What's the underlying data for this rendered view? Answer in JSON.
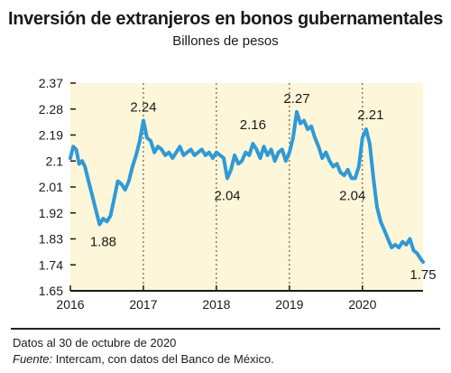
{
  "header": {
    "title": "Inversión de extranjeros en bonos gubernamentales",
    "subtitle": "Billones de pesos"
  },
  "footer": {
    "note": "Datos al 30 de octubre de 2020",
    "source_label": "Fuente:",
    "source_text": "Intercam, con datos del Banco de México."
  },
  "colors": {
    "plot_background": "#fdf6d8",
    "line": "#2e9ad8",
    "grid": "#444444"
  },
  "chart_data": {
    "type": "line",
    "title": "Inversión de extranjeros en bonos gubernamentales",
    "ylabel": "Billones de pesos",
    "xlabel": "",
    "ylim": [
      1.65,
      2.37
    ],
    "xlim": [
      2016.0,
      2020.83
    ],
    "y_ticks": [
      2.37,
      2.28,
      2.19,
      2.1,
      2.01,
      1.92,
      1.83,
      1.74,
      1.65
    ],
    "y_tick_labels": [
      "2.37",
      "2.28",
      "2.19",
      "2.1",
      "2.01",
      "1.92",
      "1.83",
      "1.74",
      "1.65"
    ],
    "x_ticks": [
      2016,
      2017,
      2018,
      2019,
      2020
    ],
    "x_tick_labels": [
      "2016",
      "2017",
      "2018",
      "2019",
      "2020"
    ],
    "grid": "vertical dashed",
    "series": [
      {
        "x": [
          2016.0,
          2016.04,
          2016.08,
          2016.12,
          2016.16,
          2016.2,
          2016.25,
          2016.3,
          2016.35,
          2016.4,
          2016.45,
          2016.5,
          2016.55,
          2016.6,
          2016.65,
          2016.7,
          2016.75,
          2016.8,
          2016.85,
          2016.9,
          2016.95,
          2017.0,
          2017.05,
          2017.1,
          2017.15,
          2017.2,
          2017.25,
          2017.3,
          2017.35,
          2017.4,
          2017.45,
          2017.5,
          2017.55,
          2017.6,
          2017.65,
          2017.7,
          2017.75,
          2017.8,
          2017.85,
          2017.9,
          2017.95,
          2018.0,
          2018.05,
          2018.1,
          2018.15,
          2018.2,
          2018.25,
          2018.3,
          2018.35,
          2018.4,
          2018.45,
          2018.5,
          2018.55,
          2018.6,
          2018.65,
          2018.7,
          2018.75,
          2018.8,
          2018.85,
          2018.9,
          2018.95,
          2019.0,
          2019.05,
          2019.1,
          2019.15,
          2019.2,
          2019.25,
          2019.3,
          2019.35,
          2019.4,
          2019.45,
          2019.5,
          2019.55,
          2019.6,
          2019.65,
          2019.7,
          2019.75,
          2019.8,
          2019.85,
          2019.9,
          2019.95,
          2020.0,
          2020.05,
          2020.1,
          2020.15,
          2020.2,
          2020.25,
          2020.3,
          2020.35,
          2020.4,
          2020.45,
          2020.5,
          2020.55,
          2020.6,
          2020.65,
          2020.7,
          2020.75,
          2020.8,
          2020.83
        ],
        "y": [
          2.11,
          2.15,
          2.14,
          2.09,
          2.1,
          2.08,
          2.03,
          1.98,
          1.93,
          1.88,
          1.9,
          1.89,
          1.91,
          1.97,
          2.03,
          2.02,
          2.0,
          2.03,
          2.08,
          2.12,
          2.17,
          2.24,
          2.18,
          2.17,
          2.13,
          2.15,
          2.14,
          2.12,
          2.13,
          2.11,
          2.13,
          2.15,
          2.12,
          2.13,
          2.14,
          2.12,
          2.13,
          2.14,
          2.12,
          2.13,
          2.11,
          2.13,
          2.12,
          2.11,
          2.04,
          2.07,
          2.12,
          2.09,
          2.1,
          2.13,
          2.12,
          2.16,
          2.14,
          2.11,
          2.15,
          2.12,
          2.14,
          2.1,
          2.13,
          2.14,
          2.1,
          2.13,
          2.18,
          2.27,
          2.23,
          2.24,
          2.21,
          2.22,
          2.18,
          2.15,
          2.11,
          2.13,
          2.1,
          2.08,
          2.09,
          2.06,
          2.05,
          2.07,
          2.04,
          2.04,
          2.08,
          2.18,
          2.21,
          2.16,
          2.04,
          1.94,
          1.89,
          1.86,
          1.83,
          1.8,
          1.81,
          1.8,
          1.82,
          1.81,
          1.83,
          1.79,
          1.78,
          1.76,
          1.75
        ]
      }
    ],
    "annotations": [
      {
        "text": "1.88",
        "x": 2016.45,
        "y": 1.88
      },
      {
        "text": "2.24",
        "x": 2017.0,
        "y": 2.24
      },
      {
        "text": "2.04",
        "x": 2018.15,
        "y": 2.04
      },
      {
        "text": "2.16",
        "x": 2018.5,
        "y": 2.16
      },
      {
        "text": "2.27",
        "x": 2019.1,
        "y": 2.27
      },
      {
        "text": "2.21",
        "x": 2020.05,
        "y": 2.21
      },
      {
        "text": "2.04",
        "x": 2019.9,
        "y": 2.04
      },
      {
        "text": "1.75",
        "x": 2020.83,
        "y": 1.75
      }
    ]
  }
}
